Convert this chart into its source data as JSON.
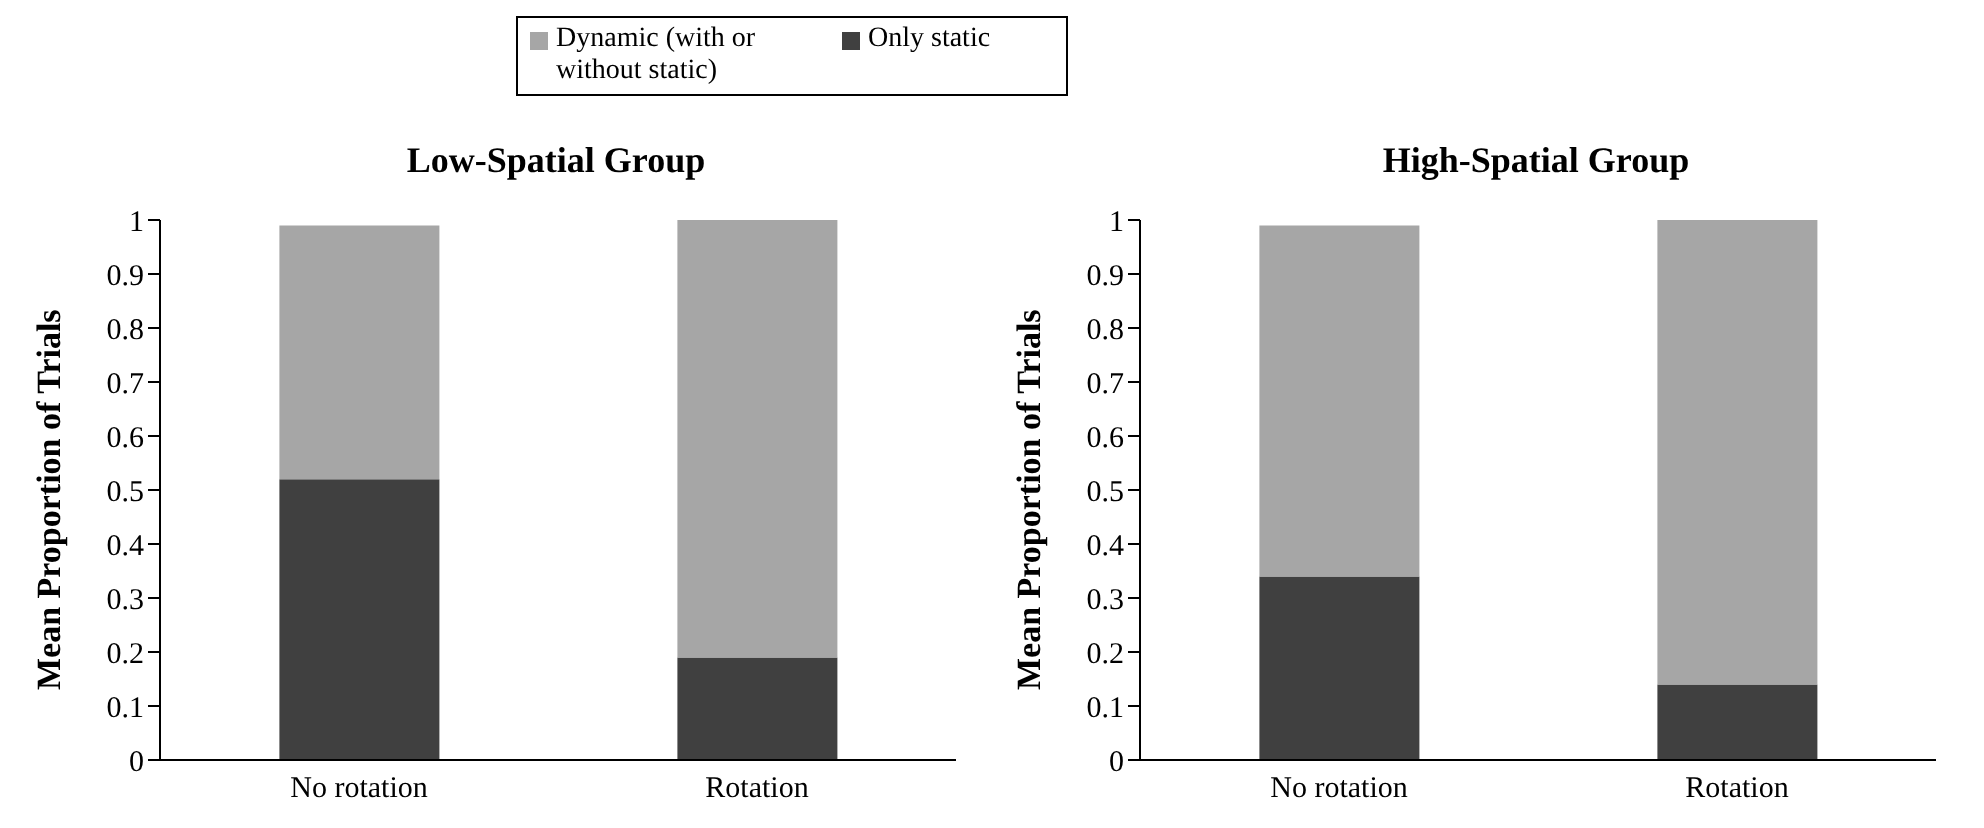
{
  "chart_data": [
    {
      "type": "bar",
      "title": "Low-Spatial Group",
      "ylabel": "Mean Proportion of Trials",
      "categories": [
        "No rotation",
        "Rotation"
      ],
      "stacked": true,
      "legend": "top",
      "grid": false,
      "ylim": [
        0,
        1
      ],
      "yticks": [
        0,
        0.1,
        0.2,
        0.3,
        0.4,
        0.5,
        0.6,
        0.7,
        0.8,
        0.9,
        1
      ],
      "series": [
        {
          "name": "Only static",
          "color": "#404040",
          "values": [
            0.52,
            0.19
          ]
        },
        {
          "name": "Dynamic (with or without static)",
          "color": "#a6a6a6",
          "values": [
            0.47,
            0.81
          ]
        }
      ]
    },
    {
      "type": "bar",
      "title": "High-Spatial Group",
      "ylabel": "Mean Proportion of Trials",
      "categories": [
        "No rotation",
        "Rotation"
      ],
      "stacked": true,
      "grid": false,
      "ylim": [
        0,
        1
      ],
      "yticks": [
        0,
        0.1,
        0.2,
        0.3,
        0.4,
        0.5,
        0.6,
        0.7,
        0.8,
        0.9,
        1
      ],
      "series": [
        {
          "color": "#404040",
          "values": [
            0.34,
            0.14
          ]
        },
        {
          "color": "#a6a6a6",
          "values": [
            0.65,
            0.86
          ]
        }
      ]
    }
  ]
}
